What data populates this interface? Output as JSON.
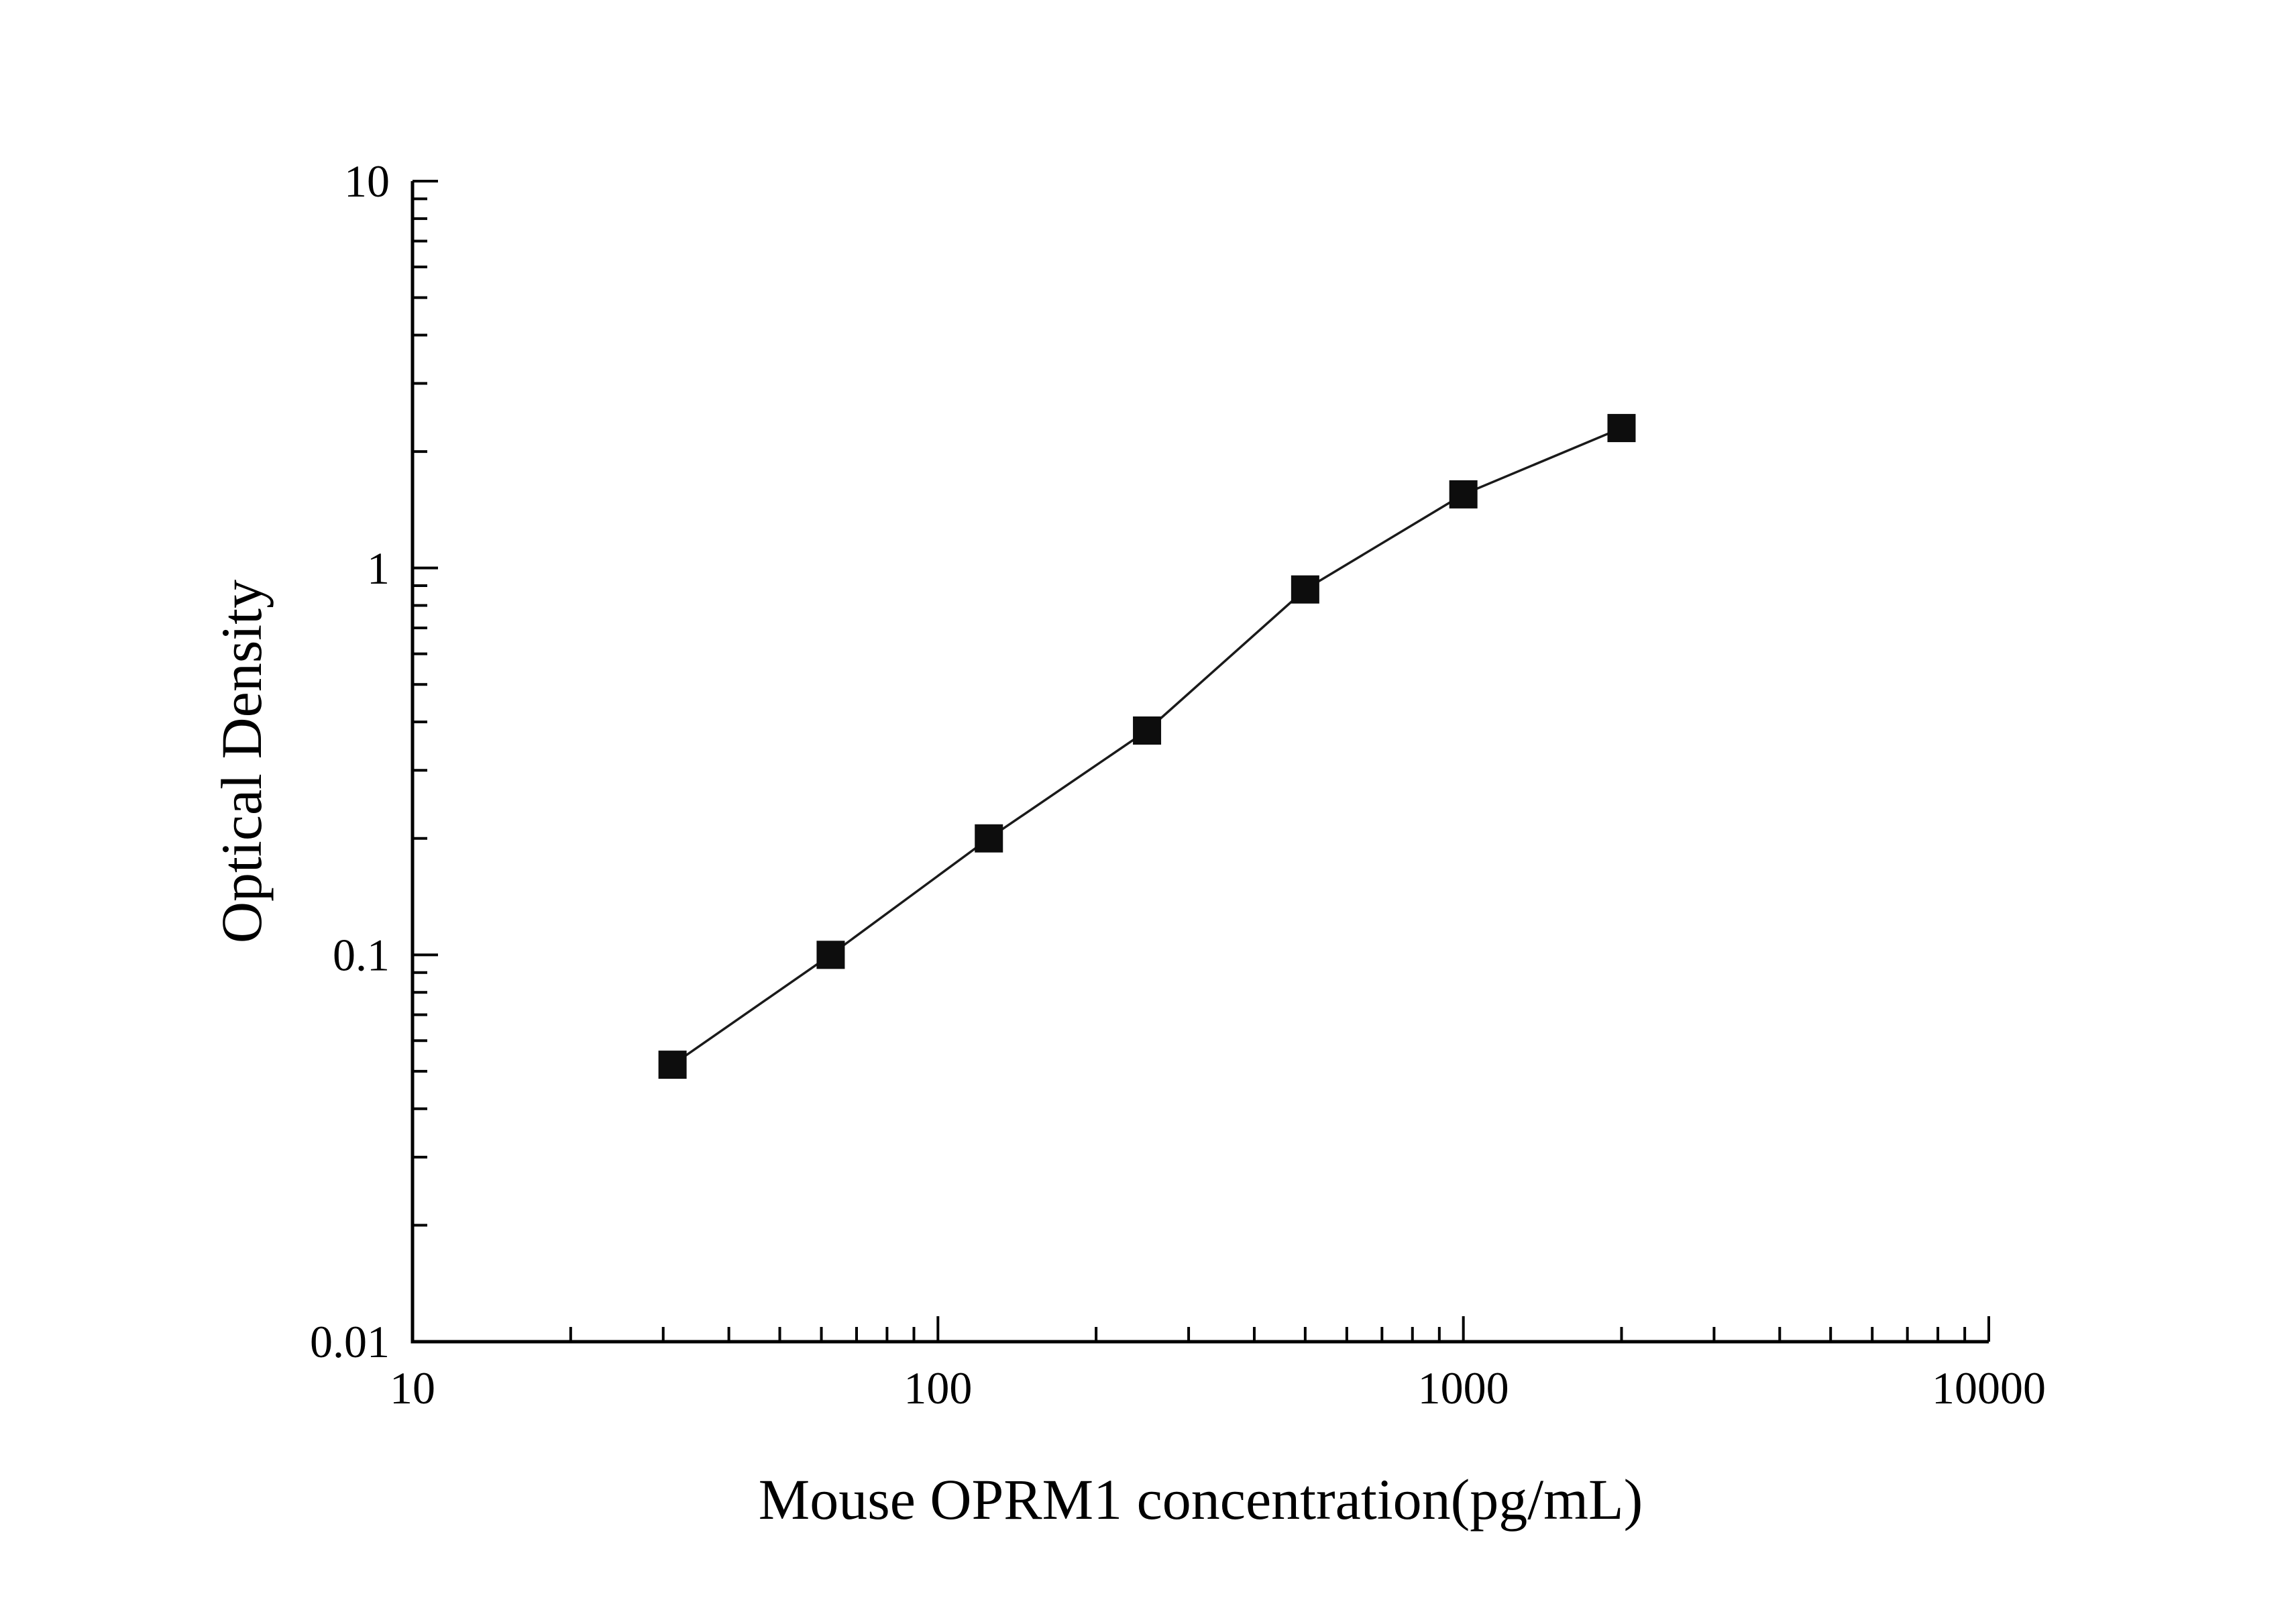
{
  "chart": {
    "xlabel": "Mouse OPRM1 concentration(pg/mL)",
    "ylabel": "Optical Density"
  },
  "chart_data": {
    "type": "scatter",
    "subtype": "scatter-line",
    "x_scale": "log",
    "y_scale": "log",
    "x": [
      31.25,
      62.5,
      125,
      250,
      500,
      1000,
      2000
    ],
    "y": [
      0.052,
      0.1,
      0.2,
      0.38,
      0.88,
      1.55,
      2.3
    ],
    "xlim": [
      10,
      10000
    ],
    "ylim": [
      0.01,
      10
    ],
    "x_ticks": [
      10,
      100,
      1000,
      10000
    ],
    "x_tick_labels": [
      "10",
      "100",
      "1000",
      "10000"
    ],
    "y_ticks": [
      0.01,
      0.1,
      1,
      10
    ],
    "y_tick_labels": [
      "0.01",
      "0.1",
      "1",
      "10"
    ],
    "xlabel": "Mouse OPRM1 concentration(pg/mL)",
    "ylabel": "Optical Density",
    "title": "",
    "grid": false,
    "legend": null,
    "marker": "square",
    "marker_color": "#0d0d0d",
    "line_color": "#1a1a1a",
    "axis_color": "#000000",
    "background": "#ffffff"
  }
}
